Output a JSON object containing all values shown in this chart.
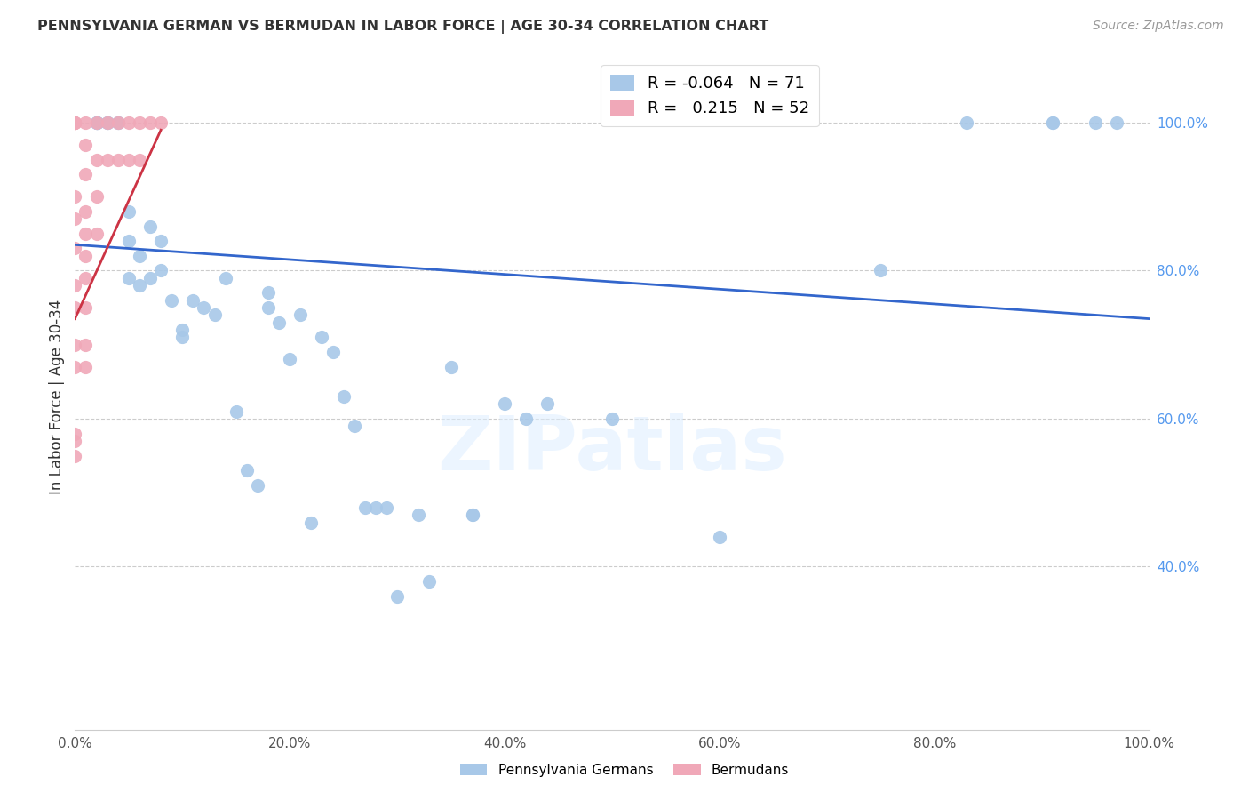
{
  "title": "PENNSYLVANIA GERMAN VS BERMUDAN IN LABOR FORCE | AGE 30-34 CORRELATION CHART",
  "source": "Source: ZipAtlas.com",
  "ylabel": "In Labor Force | Age 30-34",
  "xlim": [
    0.0,
    1.0
  ],
  "ylim": [
    0.18,
    1.08
  ],
  "xtick_labels": [
    "0.0%",
    "20.0%",
    "40.0%",
    "60.0%",
    "80.0%",
    "100.0%"
  ],
  "xtick_vals": [
    0.0,
    0.2,
    0.4,
    0.6,
    0.8,
    1.0
  ],
  "ytick_vals": [
    0.4,
    0.6,
    0.8,
    1.0
  ],
  "ytick_labels_right": [
    "40.0%",
    "60.0%",
    "80.0%",
    "100.0%"
  ],
  "blue_color": "#a8c8e8",
  "pink_color": "#f0a8b8",
  "trend_blue": "#3366cc",
  "trend_pink": "#cc3344",
  "legend_R_blue": "-0.064",
  "legend_N_blue": "71",
  "legend_R_pink": "0.215",
  "legend_N_pink": "52",
  "watermark_text": "ZIPatlas",
  "blue_scatter_x": [
    0.02,
    0.02,
    0.02,
    0.02,
    0.02,
    0.03,
    0.03,
    0.03,
    0.04,
    0.04,
    0.05,
    0.05,
    0.05,
    0.06,
    0.06,
    0.07,
    0.07,
    0.08,
    0.08,
    0.09,
    0.1,
    0.1,
    0.11,
    0.12,
    0.13,
    0.14,
    0.15,
    0.16,
    0.17,
    0.18,
    0.18,
    0.19,
    0.2,
    0.21,
    0.22,
    0.23,
    0.24,
    0.25,
    0.26,
    0.27,
    0.28,
    0.29,
    0.3,
    0.32,
    0.33,
    0.35,
    0.37,
    0.37,
    0.4,
    0.42,
    0.44,
    0.5,
    0.6,
    0.75,
    0.83,
    0.91,
    0.91,
    0.95,
    0.97
  ],
  "blue_scatter_y": [
    1.0,
    1.0,
    1.0,
    1.0,
    1.0,
    1.0,
    1.0,
    1.0,
    1.0,
    1.0,
    0.88,
    0.84,
    0.79,
    0.82,
    0.78,
    0.86,
    0.79,
    0.84,
    0.8,
    0.76,
    0.72,
    0.71,
    0.76,
    0.75,
    0.74,
    0.79,
    0.61,
    0.53,
    0.51,
    0.77,
    0.75,
    0.73,
    0.68,
    0.74,
    0.46,
    0.71,
    0.69,
    0.63,
    0.59,
    0.48,
    0.48,
    0.48,
    0.36,
    0.47,
    0.38,
    0.67,
    0.47,
    0.47,
    0.62,
    0.6,
    0.62,
    0.6,
    0.44,
    0.8,
    1.0,
    1.0,
    1.0,
    1.0,
    1.0
  ],
  "pink_scatter_x": [
    0.0,
    0.0,
    0.0,
    0.0,
    0.0,
    0.0,
    0.0,
    0.0,
    0.0,
    0.0,
    0.0,
    0.0,
    0.0,
    0.0,
    0.0,
    0.01,
    0.01,
    0.01,
    0.01,
    0.01,
    0.01,
    0.01,
    0.01,
    0.01,
    0.01,
    0.02,
    0.02,
    0.02,
    0.02,
    0.03,
    0.03,
    0.04,
    0.04,
    0.05,
    0.05,
    0.06,
    0.06,
    0.07,
    0.08
  ],
  "pink_scatter_y": [
    1.0,
    1.0,
    1.0,
    1.0,
    1.0,
    0.9,
    0.87,
    0.83,
    0.78,
    0.75,
    0.7,
    0.67,
    0.58,
    0.55,
    0.57,
    1.0,
    0.97,
    0.93,
    0.88,
    0.85,
    0.82,
    0.79,
    0.75,
    0.7,
    0.67,
    1.0,
    0.95,
    0.9,
    0.85,
    1.0,
    0.95,
    1.0,
    0.95,
    1.0,
    0.95,
    1.0,
    0.95,
    1.0,
    1.0
  ],
  "blue_trend_x": [
    0.0,
    1.0
  ],
  "blue_trend_y_start": 0.835,
  "blue_trend_y_end": 0.735,
  "pink_trend_x": [
    0.0,
    0.08
  ],
  "pink_trend_y_start": 0.735,
  "pink_trend_y_end": 0.99
}
